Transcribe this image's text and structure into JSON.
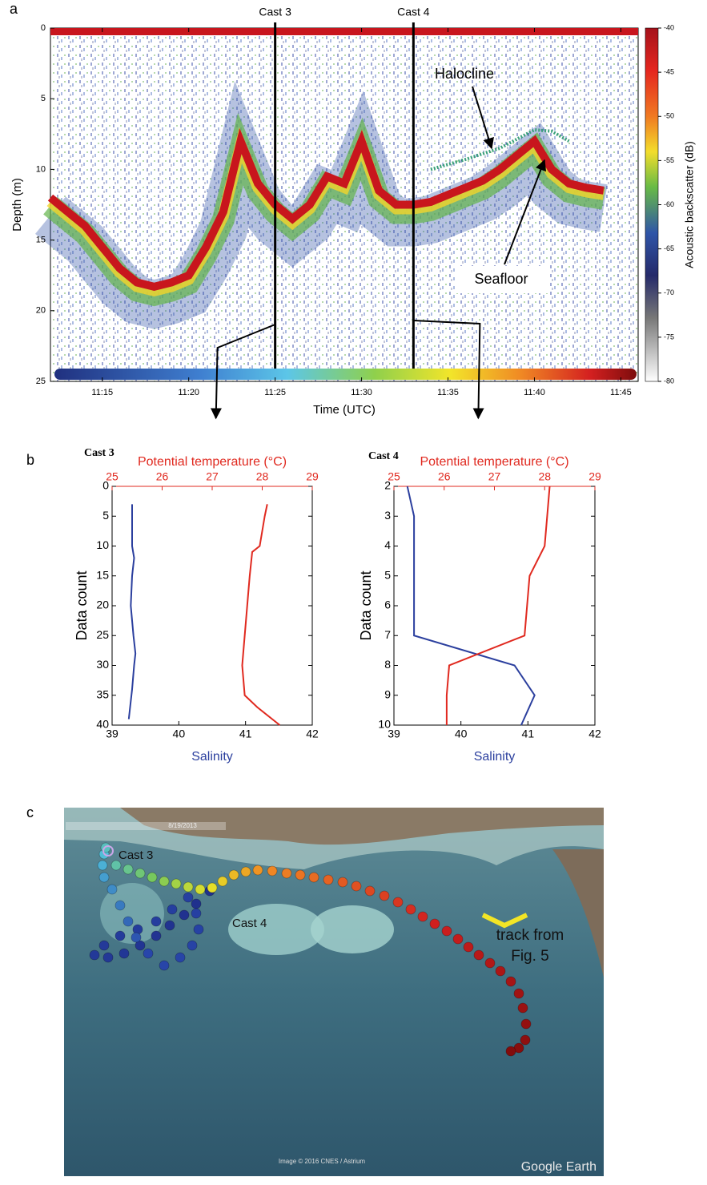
{
  "chart_data": [
    {
      "type": "echogram",
      "panel_label": "a",
      "ylabel": "Depth (m)",
      "xlabel": "Time (UTC)",
      "xlim": [
        "11:12",
        "11:46"
      ],
      "xticks": [
        "11:15",
        "11:20",
        "11:25",
        "11:30",
        "11:35",
        "11:40",
        "11:45"
      ],
      "ylim": [
        0,
        25
      ],
      "y_inverted": true,
      "yticks": [
        0,
        5,
        10,
        15,
        20,
        25
      ],
      "x": [
        "11:12",
        "11:13",
        "11:14",
        "11:15",
        "11:16",
        "11:17",
        "11:18",
        "11:19",
        "11:20",
        "11:21",
        "11:22",
        "11:23",
        "11:24",
        "11:25",
        "11:26",
        "11:27",
        "11:28",
        "11:29",
        "11:30",
        "11:31",
        "11:32",
        "11:33",
        "11:34",
        "11:35",
        "11:36",
        "11:37",
        "11:38",
        "11:39",
        "11:40",
        "11:41",
        "11:42",
        "11:43",
        "11:44"
      ],
      "seafloor_depth": [
        12,
        13,
        14,
        15.5,
        17,
        18,
        18.3,
        18,
        17.5,
        15.5,
        13,
        8,
        11,
        12.5,
        13.5,
        12.5,
        10.5,
        11,
        8,
        11.5,
        12.5,
        12.5,
        12.3,
        11.8,
        11.3,
        10.8,
        10,
        9,
        8,
        10,
        11,
        11.3,
        11.5
      ],
      "halocline_x": [
        "11:34",
        "11:36",
        "11:38",
        "11:40",
        "11:41",
        "11:42"
      ],
      "halocline_depth": [
        10,
        9.3,
        8.5,
        7.2,
        7.3,
        8
      ],
      "casts": [
        {
          "label": "Cast 3",
          "x": "11:25"
        },
        {
          "label": "Cast 4",
          "x": "11:33"
        }
      ],
      "annotations": [
        {
          "text": "Halocline"
        },
        {
          "text": "Seafloor"
        }
      ],
      "colorbar": {
        "label": "Acoustic backscatter (dB)",
        "lim": [
          -40,
          -80
        ],
        "ticks": [
          -40,
          -45,
          -50,
          -55,
          -60,
          -65,
          -70,
          -75,
          -80
        ]
      }
    },
    {
      "type": "profile",
      "panel_label": "b",
      "title": "Cast 3",
      "xlabel": "Salinity",
      "x2label": "Potential temperature (°C)",
      "xlim": [
        39,
        42
      ],
      "xticks": [
        39,
        40,
        41,
        42
      ],
      "x2lim": [
        25,
        29
      ],
      "x2ticks": [
        25,
        26,
        27,
        28,
        29
      ],
      "ylabel": "Data count",
      "ylim": [
        0,
        40
      ],
      "y_inverted": true,
      "yticks": [
        0,
        5,
        10,
        15,
        20,
        25,
        30,
        35,
        40
      ],
      "series": [
        {
          "color": "#2b3f9e",
          "y": [
            3,
            5,
            10,
            12,
            15,
            20,
            25,
            28,
            30,
            34,
            37,
            39
          ],
          "values": [
            39.3,
            39.3,
            39.3,
            39.33,
            39.3,
            39.28,
            39.32,
            39.35,
            39.33,
            39.3,
            39.27,
            39.25
          ]
        },
        {
          "color": "#e0291f",
          "axis": "x2",
          "y": [
            3,
            5,
            10,
            11,
            15,
            20,
            25,
            30,
            35,
            37,
            40
          ],
          "values": [
            28.1,
            28.05,
            27.95,
            27.8,
            27.75,
            27.7,
            27.65,
            27.6,
            27.65,
            27.9,
            28.35
          ]
        }
      ]
    },
    {
      "type": "profile",
      "title": "Cast 4",
      "xlabel": "Salinity",
      "x2label": "Potential temperature (°C)",
      "xlim": [
        39,
        42
      ],
      "xticks": [
        39,
        40,
        41,
        42
      ],
      "x2lim": [
        25,
        29
      ],
      "x2ticks": [
        25,
        26,
        27,
        28,
        29
      ],
      "ylabel": "Data count",
      "ylim": [
        2,
        10
      ],
      "y_inverted": true,
      "yticks": [
        2,
        3,
        4,
        5,
        6,
        7,
        8,
        9,
        10
      ],
      "series": [
        {
          "color": "#2b3f9e",
          "y": [
            2,
            3,
            4,
            5,
            6,
            7,
            8,
            9,
            10
          ],
          "values": [
            39.2,
            39.3,
            39.3,
            39.3,
            39.3,
            39.3,
            40.8,
            41.1,
            40.9
          ]
        },
        {
          "color": "#e0291f",
          "axis": "x2",
          "y": [
            2,
            3,
            4,
            5,
            6,
            7,
            8,
            9,
            10
          ],
          "values": [
            28.1,
            28.05,
            28.0,
            27.7,
            27.65,
            27.6,
            26.1,
            26.05,
            26.05
          ]
        }
      ]
    }
  ],
  "map": {
    "panel_label": "c",
    "date": "8/19/2013",
    "cast3": "Cast 3",
    "cast4": "Cast 4",
    "track_note": [
      "track from",
      "Fig. 5"
    ],
    "credit": "Image © 2016 CNES / Astrium",
    "brand": "Google Earth"
  }
}
